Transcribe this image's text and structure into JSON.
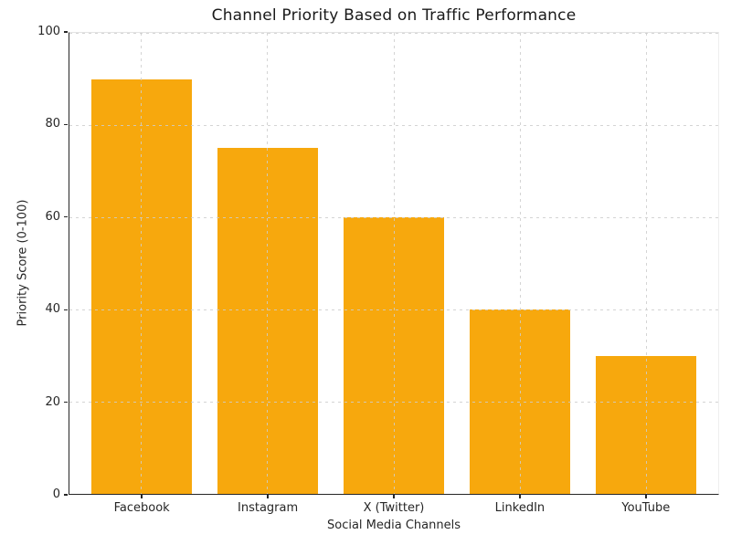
{
  "chart_data": {
    "type": "bar",
    "title": "Channel Priority Based on Traffic Performance",
    "xlabel": "Social Media Channels",
    "ylabel": "Priority Score (0-100)",
    "categories": [
      "Facebook",
      "Instagram",
      "X (Twitter)",
      "LinkedIn",
      "YouTube"
    ],
    "values": [
      90,
      75,
      60,
      40,
      30
    ],
    "ylim": [
      0,
      100
    ],
    "yticks": [
      0,
      20,
      40,
      60,
      80,
      100
    ],
    "grid": true,
    "grid_style": "dashed",
    "grid_position": "above-bars",
    "legend": "none",
    "colors": {
      "bar": "#F7A80D",
      "background": "#FFFFFF",
      "axis_spine": "#262626",
      "gridline": "#CDCDCD",
      "text": "#262626",
      "title_text": "#1A1A1A"
    }
  }
}
